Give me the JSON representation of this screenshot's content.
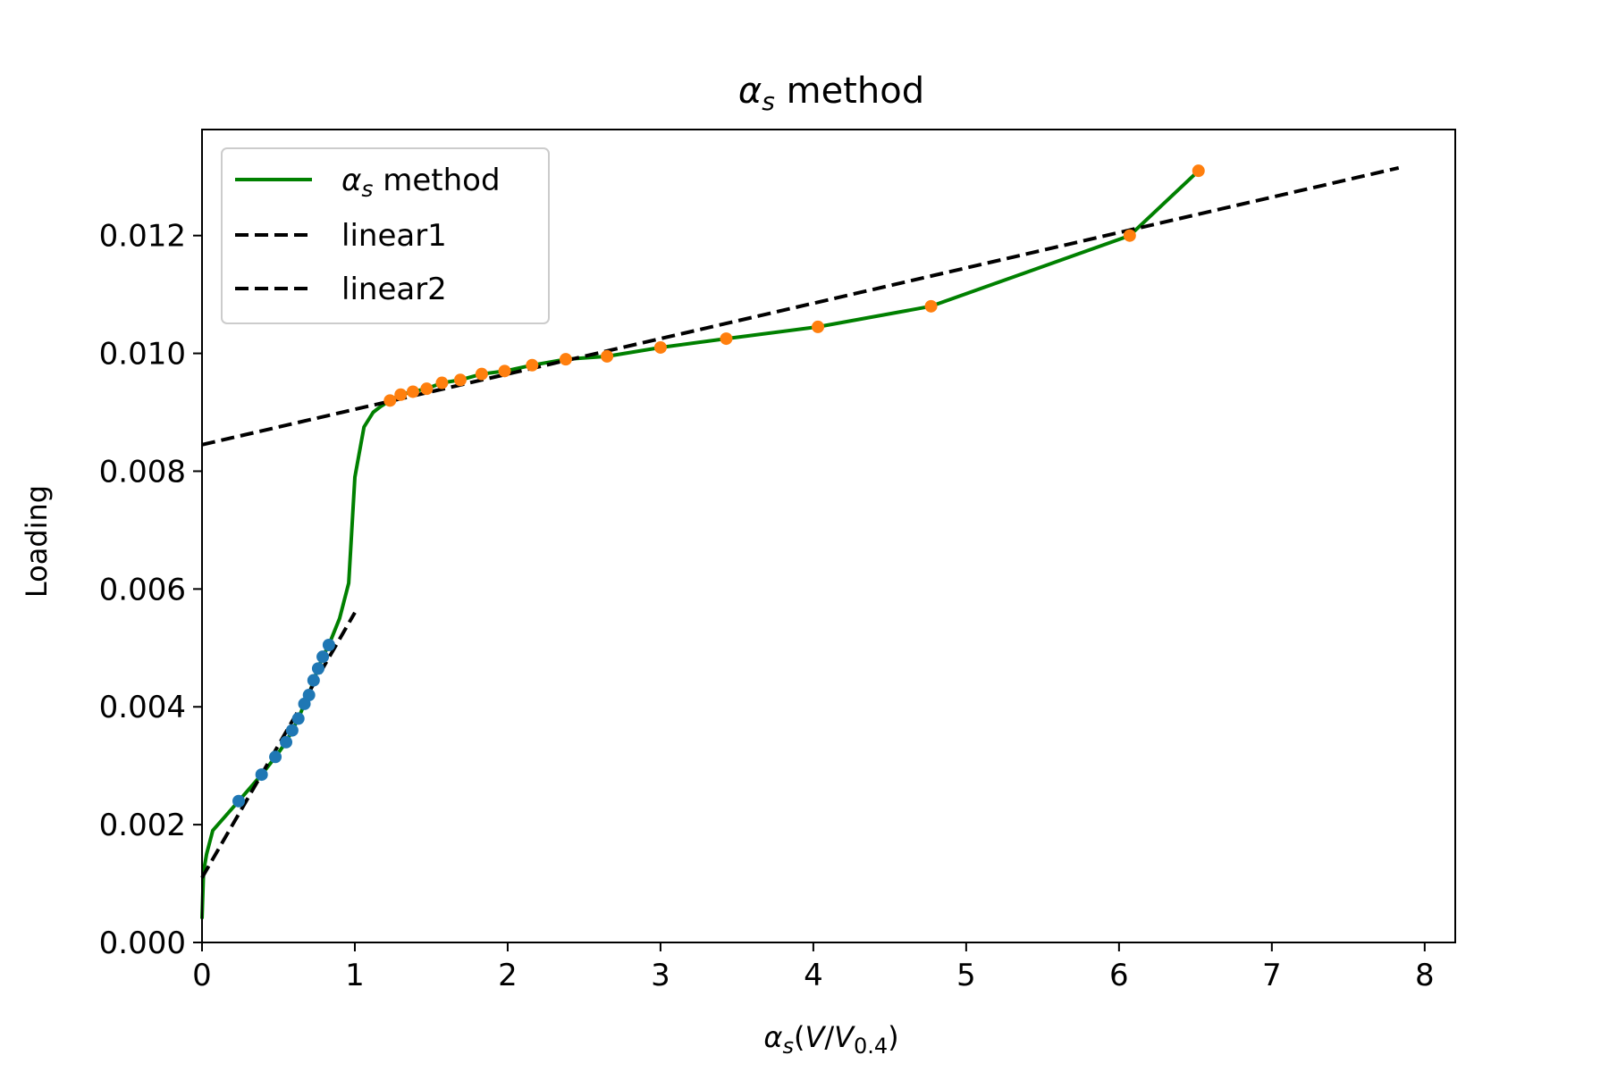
{
  "chart_data": {
    "type": "line",
    "title": "α_s method",
    "xlabel": "α_s(V/V_0.4)",
    "ylabel": "Loading",
    "xlim": [
      0,
      8.2
    ],
    "ylim": [
      0,
      0.0138
    ],
    "xticks": [
      0,
      1,
      2,
      3,
      4,
      5,
      6,
      7,
      8
    ],
    "xtick_labels": [
      "0",
      "1",
      "2",
      "3",
      "4",
      "5",
      "6",
      "7",
      "8"
    ],
    "yticks": [
      0,
      0.002,
      0.004,
      0.006,
      0.008,
      0.01,
      0.012
    ],
    "ytick_labels": [
      "0.000",
      "0.002",
      "0.004",
      "0.006",
      "0.008",
      "0.010",
      "0.012"
    ],
    "grid": false,
    "legend_position": "upper-left",
    "legend": [
      {
        "label": "α_s method",
        "style": "solid",
        "color": "#008000"
      },
      {
        "label": "linear1",
        "style": "dashed",
        "color": "#000000"
      },
      {
        "label": "linear2",
        "style": "dashed",
        "color": "#000000"
      }
    ],
    "series": [
      {
        "name": "α_s method",
        "kind": "line",
        "color": "#008000",
        "x": [
          0.0,
          0.01,
          0.03,
          0.07,
          0.24,
          0.39,
          0.48,
          0.55,
          0.59,
          0.63,
          0.67,
          0.7,
          0.73,
          0.76,
          0.79,
          0.83,
          0.9,
          0.96,
          1.0,
          1.06,
          1.12,
          1.17,
          1.23,
          1.3,
          1.38,
          1.47,
          1.57,
          1.69,
          1.83,
          1.98,
          2.16,
          2.38,
          2.65,
          3.0,
          3.43,
          4.03,
          4.77,
          6.07,
          6.52
        ],
        "y": [
          0.0004,
          0.0012,
          0.0015,
          0.0019,
          0.0024,
          0.00285,
          0.00315,
          0.0034,
          0.0036,
          0.0038,
          0.00405,
          0.0042,
          0.00445,
          0.00465,
          0.00485,
          0.00505,
          0.0055,
          0.0061,
          0.0079,
          0.00875,
          0.009,
          0.0091,
          0.0092,
          0.0093,
          0.00935,
          0.0094,
          0.0095,
          0.00955,
          0.00965,
          0.0097,
          0.0098,
          0.0099,
          0.00995,
          0.0101,
          0.01025,
          0.01045,
          0.0108,
          0.012,
          0.0131
        ]
      },
      {
        "name": "linear1",
        "kind": "dashed-line",
        "color": "#000000",
        "x": [
          0.0,
          1.0
        ],
        "y": [
          0.0011,
          0.0056
        ]
      },
      {
        "name": "linear2",
        "kind": "dashed-line",
        "color": "#000000",
        "x": [
          0.0,
          7.83
        ],
        "y": [
          0.00845,
          0.01315
        ]
      },
      {
        "name": "",
        "kind": "points",
        "color": "#1f77b4",
        "x": [
          0.24,
          0.39,
          0.48,
          0.55,
          0.59,
          0.63,
          0.67,
          0.7,
          0.73,
          0.76,
          0.79,
          0.83
        ],
        "y": [
          0.0024,
          0.00285,
          0.00315,
          0.0034,
          0.0036,
          0.0038,
          0.00405,
          0.0042,
          0.00445,
          0.00465,
          0.00485,
          0.00505
        ]
      },
      {
        "name": "",
        "kind": "points",
        "color": "#ff7f0e",
        "x": [
          1.23,
          1.3,
          1.38,
          1.47,
          1.57,
          1.69,
          1.83,
          1.98,
          2.16,
          2.38,
          2.65,
          3.0,
          3.43,
          4.03,
          4.77,
          6.07,
          6.52
        ],
        "y": [
          0.0092,
          0.0093,
          0.00935,
          0.0094,
          0.0095,
          0.00955,
          0.00965,
          0.0097,
          0.0098,
          0.0099,
          0.00995,
          0.0101,
          0.01025,
          0.01045,
          0.0108,
          0.012,
          0.0131
        ]
      }
    ]
  }
}
